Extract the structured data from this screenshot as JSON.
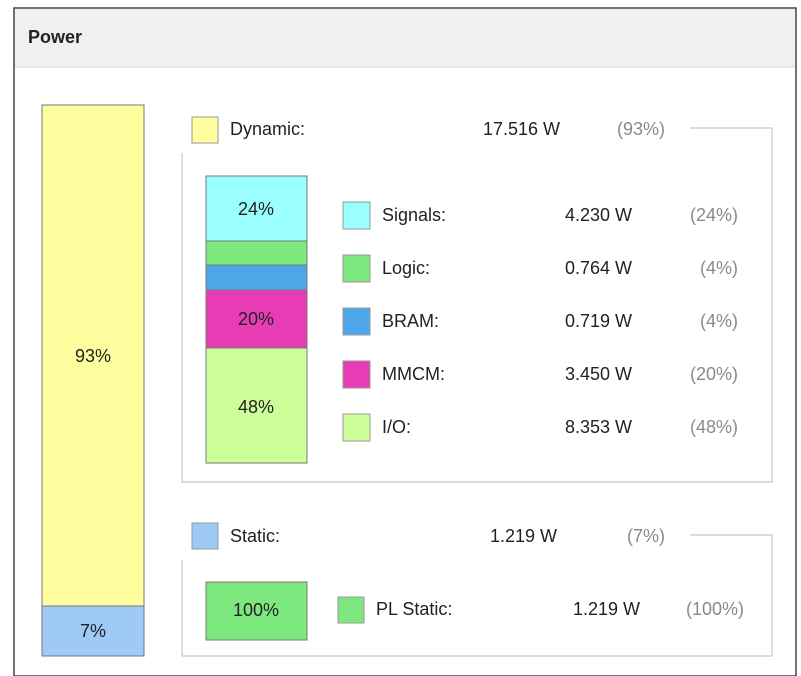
{
  "header": {
    "title": "Power"
  },
  "total": {
    "dynamic_share": "93%",
    "static_share": "7%"
  },
  "dynamic": {
    "label": "Dynamic:",
    "power": "17.516 W",
    "share": "(93%)",
    "items": [
      {
        "name": "Signals:",
        "power": "4.230 W",
        "share": "(24%)",
        "bar_label": "24%"
      },
      {
        "name": "Logic:",
        "power": "0.764 W",
        "share": "(4%)"
      },
      {
        "name": "BRAM:",
        "power": "0.719 W",
        "share": "(4%)"
      },
      {
        "name": "MMCM:",
        "power": "3.450 W",
        "share": "(20%)",
        "bar_label": "20%"
      },
      {
        "name": "I/O:",
        "power": "8.353 W",
        "share": "(48%)",
        "bar_label": "48%"
      }
    ]
  },
  "static": {
    "label": "Static:",
    "power": "1.219 W",
    "share": "(7%)",
    "items": [
      {
        "name": "PL Static:",
        "power": "1.219 W",
        "share": "(100%)",
        "bar_label": "100%"
      }
    ]
  }
}
